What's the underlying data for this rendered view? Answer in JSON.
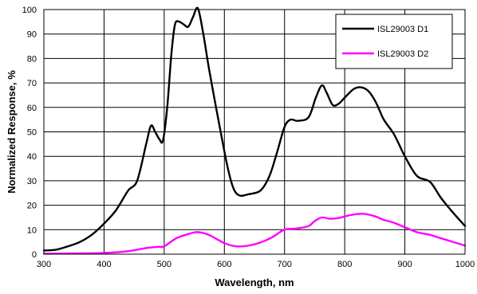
{
  "chart_data": {
    "type": "line",
    "xlabel": "Wavelength, nm",
    "ylabel": "Normalized Response, %",
    "xlim": [
      300,
      1000
    ],
    "ylim": [
      0,
      100
    ],
    "x_ticks": [
      "300",
      "400",
      "500",
      "600",
      "700",
      "800",
      "900",
      "1000"
    ],
    "y_ticks": [
      "0",
      "10",
      "20",
      "30",
      "40",
      "50",
      "60",
      "70",
      "80",
      "90",
      "100"
    ],
    "grid": true,
    "legend_position": "top-right",
    "series": [
      {
        "name": "ISL29003 D1",
        "color": "#000000",
        "points": [
          [
            300,
            1.5
          ],
          [
            320,
            1.8
          ],
          [
            340,
            3.2
          ],
          [
            360,
            5
          ],
          [
            380,
            8
          ],
          [
            400,
            12.5
          ],
          [
            420,
            18
          ],
          [
            440,
            26
          ],
          [
            455,
            30
          ],
          [
            470,
            45
          ],
          [
            478,
            52.5
          ],
          [
            485,
            50
          ],
          [
            492,
            47
          ],
          [
            498,
            46.5
          ],
          [
            505,
            60
          ],
          [
            512,
            82
          ],
          [
            518,
            94
          ],
          [
            525,
            95
          ],
          [
            532,
            94
          ],
          [
            540,
            93
          ],
          [
            548,
            97
          ],
          [
            556,
            100.5
          ],
          [
            565,
            90
          ],
          [
            575,
            75
          ],
          [
            590,
            55
          ],
          [
            605,
            36
          ],
          [
            615,
            27
          ],
          [
            625,
            24
          ],
          [
            640,
            24.5
          ],
          [
            660,
            26
          ],
          [
            675,
            32
          ],
          [
            688,
            42
          ],
          [
            700,
            52
          ],
          [
            710,
            55
          ],
          [
            722,
            54.5
          ],
          [
            740,
            56
          ],
          [
            752,
            64
          ],
          [
            762,
            69
          ],
          [
            770,
            66
          ],
          [
            780,
            61
          ],
          [
            790,
            61.5
          ],
          [
            800,
            64
          ],
          [
            815,
            67.5
          ],
          [
            828,
            68.2
          ],
          [
            840,
            66.5
          ],
          [
            852,
            62
          ],
          [
            865,
            55
          ],
          [
            882,
            49
          ],
          [
            900,
            40
          ],
          [
            920,
            32
          ],
          [
            942,
            29.5
          ],
          [
            960,
            23
          ],
          [
            980,
            17
          ],
          [
            1000,
            11.5
          ]
        ]
      },
      {
        "name": "ISL29003 D2",
        "color": "#ff00ff",
        "points": [
          [
            300,
            0.2
          ],
          [
            350,
            0.3
          ],
          [
            400,
            0.5
          ],
          [
            440,
            1.2
          ],
          [
            470,
            2.5
          ],
          [
            490,
            3
          ],
          [
            500,
            3.2
          ],
          [
            520,
            6.5
          ],
          [
            540,
            8.2
          ],
          [
            556,
            9
          ],
          [
            575,
            7.8
          ],
          [
            600,
            4.5
          ],
          [
            620,
            3.2
          ],
          [
            640,
            3.5
          ],
          [
            660,
            4.8
          ],
          [
            680,
            7
          ],
          [
            700,
            10
          ],
          [
            720,
            10.5
          ],
          [
            740,
            11.5
          ],
          [
            750,
            13.5
          ],
          [
            762,
            15
          ],
          [
            775,
            14.5
          ],
          [
            790,
            14.8
          ],
          [
            810,
            16
          ],
          [
            830,
            16.5
          ],
          [
            850,
            15.5
          ],
          [
            865,
            14
          ],
          [
            880,
            13
          ],
          [
            900,
            11
          ],
          [
            920,
            9
          ],
          [
            940,
            8
          ],
          [
            960,
            6.5
          ],
          [
            980,
            5
          ],
          [
            1000,
            3.5
          ]
        ]
      }
    ]
  }
}
